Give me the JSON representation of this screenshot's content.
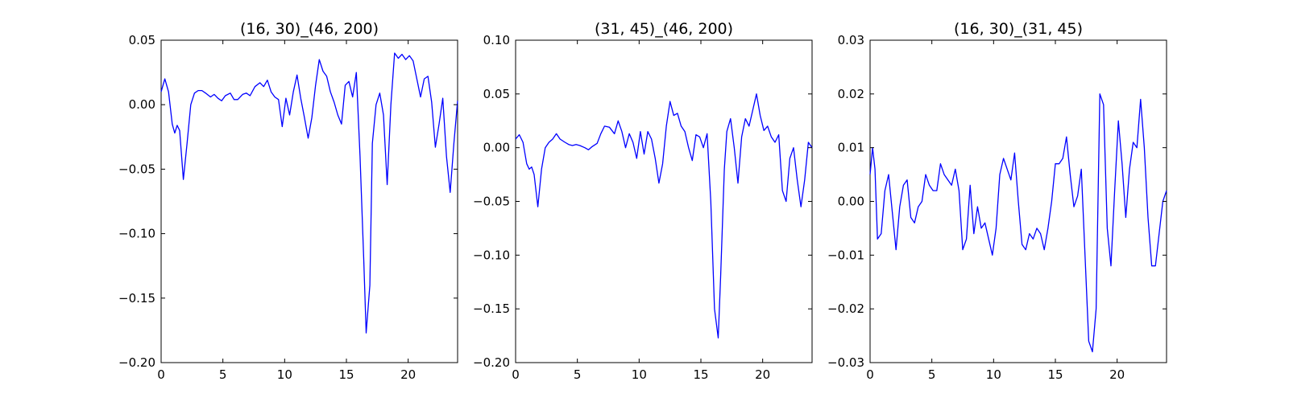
{
  "chart_data": [
    {
      "type": "line",
      "title": "(16, 30)_(46, 200)",
      "xlim": [
        0,
        24
      ],
      "ylim": [
        -0.2,
        0.05
      ],
      "xticks": [
        "0",
        "5",
        "10",
        "15",
        "20"
      ],
      "xtick_values": [
        0,
        5,
        10,
        15,
        20
      ],
      "yticks": [
        "−0.20",
        "−0.15",
        "−0.10",
        "−0.05",
        "0.00",
        "0.05"
      ],
      "ytick_values": [
        -0.2,
        -0.15,
        -0.1,
        -0.05,
        0.0,
        0.05
      ],
      "grid": false,
      "color": "#0000ff",
      "x": [
        0,
        0.3,
        0.6,
        0.9,
        1.1,
        1.3,
        1.5,
        1.8,
        2.1,
        2.4,
        2.7,
        3.0,
        3.3,
        3.6,
        4.0,
        4.3,
        4.6,
        4.9,
        5.2,
        5.6,
        5.9,
        6.2,
        6.6,
        6.9,
        7.2,
        7.6,
        8.0,
        8.3,
        8.6,
        8.9,
        9.2,
        9.5,
        9.8,
        10.1,
        10.4,
        10.7,
        11.0,
        11.3,
        11.6,
        11.9,
        12.2,
        12.5,
        12.8,
        13.1,
        13.4,
        13.7,
        14.0,
        14.3,
        14.6,
        14.9,
        15.2,
        15.5,
        15.8,
        16.1,
        16.4,
        16.6,
        16.9,
        17.1,
        17.4,
        17.7,
        18.0,
        18.3,
        18.6,
        18.9,
        19.2,
        19.5,
        19.8,
        20.1,
        20.4,
        20.7,
        21.0,
        21.3,
        21.6,
        21.9,
        22.2,
        22.5,
        22.8,
        23.1,
        23.4,
        23.7,
        24.0
      ],
      "y": [
        0.01,
        0.02,
        0.01,
        -0.015,
        -0.022,
        -0.016,
        -0.02,
        -0.058,
        -0.03,
        0.0,
        0.009,
        0.011,
        0.011,
        0.009,
        0.006,
        0.008,
        0.005,
        0.003,
        0.007,
        0.009,
        0.004,
        0.004,
        0.008,
        0.009,
        0.007,
        0.014,
        0.017,
        0.014,
        0.019,
        0.01,
        0.006,
        0.004,
        -0.017,
        0.005,
        -0.008,
        0.01,
        0.023,
        0.005,
        -0.01,
        -0.026,
        -0.01,
        0.015,
        0.035,
        0.026,
        0.022,
        0.01,
        0.002,
        -0.008,
        -0.015,
        0.015,
        0.018,
        0.006,
        0.025,
        -0.04,
        -0.12,
        -0.177,
        -0.14,
        -0.03,
        0.0,
        0.009,
        -0.008,
        -0.062,
        0.0,
        0.04,
        0.036,
        0.039,
        0.035,
        0.038,
        0.034,
        0.02,
        0.006,
        0.02,
        0.022,
        0.002,
        -0.033,
        -0.015,
        0.005,
        -0.04,
        -0.068,
        -0.03,
        0.003
      ]
    },
    {
      "type": "line",
      "title": "(31, 45)_(46, 200)",
      "xlim": [
        0,
        24
      ],
      "ylim": [
        -0.2,
        0.1
      ],
      "xticks": [
        "0",
        "5",
        "10",
        "15",
        "20"
      ],
      "xtick_values": [
        0,
        5,
        10,
        15,
        20
      ],
      "yticks": [
        "−0.20",
        "−0.15",
        "−0.10",
        "−0.05",
        "0.00",
        "0.05",
        "0.10"
      ],
      "ytick_values": [
        -0.2,
        -0.15,
        -0.1,
        -0.05,
        0.0,
        0.05,
        0.1
      ],
      "grid": false,
      "color": "#0000ff",
      "x": [
        0,
        0.3,
        0.6,
        0.9,
        1.1,
        1.3,
        1.5,
        1.8,
        2.1,
        2.4,
        2.7,
        3.0,
        3.3,
        3.6,
        4.0,
        4.3,
        4.6,
        4.9,
        5.2,
        5.6,
        5.9,
        6.2,
        6.6,
        6.9,
        7.2,
        7.6,
        8.0,
        8.3,
        8.6,
        8.9,
        9.2,
        9.5,
        9.8,
        10.1,
        10.4,
        10.7,
        11.0,
        11.3,
        11.6,
        11.9,
        12.2,
        12.5,
        12.8,
        13.1,
        13.4,
        13.7,
        14.0,
        14.3,
        14.6,
        14.9,
        15.2,
        15.5,
        15.8,
        16.1,
        16.4,
        16.6,
        16.9,
        17.1,
        17.4,
        17.7,
        18.0,
        18.3,
        18.6,
        18.9,
        19.2,
        19.5,
        19.8,
        20.1,
        20.4,
        20.7,
        21.0,
        21.3,
        21.6,
        21.9,
        22.2,
        22.5,
        22.8,
        23.1,
        23.4,
        23.7,
        24.0
      ],
      "y": [
        0.008,
        0.012,
        0.005,
        -0.015,
        -0.02,
        -0.018,
        -0.025,
        -0.055,
        -0.02,
        0.0,
        0.005,
        0.008,
        0.013,
        0.008,
        0.005,
        0.003,
        0.002,
        0.003,
        0.002,
        0.0,
        -0.002,
        0.001,
        0.004,
        0.013,
        0.02,
        0.019,
        0.013,
        0.025,
        0.015,
        0.0,
        0.013,
        0.005,
        -0.01,
        0.015,
        -0.006,
        0.015,
        0.008,
        -0.01,
        -0.033,
        -0.015,
        0.02,
        0.043,
        0.03,
        0.032,
        0.02,
        0.015,
        0.0,
        -0.012,
        0.012,
        0.01,
        0.0,
        0.013,
        -0.05,
        -0.15,
        -0.177,
        -0.12,
        -0.02,
        0.015,
        0.027,
        0.0,
        -0.033,
        0.01,
        0.027,
        0.02,
        0.035,
        0.05,
        0.03,
        0.016,
        0.02,
        0.01,
        0.005,
        0.012,
        -0.04,
        -0.05,
        -0.01,
        0.0,
        -0.03,
        -0.055,
        -0.03,
        0.005,
        0.0
      ]
    },
    {
      "type": "line",
      "title": "(16, 30)_(31, 45)",
      "xlim": [
        0,
        24
      ],
      "ylim": [
        -0.03,
        0.03
      ],
      "xticks": [
        "0",
        "5",
        "10",
        "15",
        "20"
      ],
      "xtick_values": [
        0,
        5,
        10,
        15,
        20
      ],
      "yticks": [
        "−0.03",
        "−0.02",
        "−0.01",
        "0.00",
        "0.01",
        "0.02",
        "0.03"
      ],
      "ytick_values": [
        -0.03,
        -0.02,
        -0.01,
        0.0,
        0.01,
        0.02,
        0.03
      ],
      "grid": false,
      "color": "#0000ff",
      "x": [
        0,
        0.2,
        0.4,
        0.6,
        0.9,
        1.2,
        1.5,
        1.8,
        2.1,
        2.4,
        2.7,
        3.0,
        3.3,
        3.6,
        3.9,
        4.2,
        4.5,
        4.8,
        5.1,
        5.4,
        5.7,
        6.0,
        6.3,
        6.6,
        6.9,
        7.2,
        7.5,
        7.8,
        8.1,
        8.4,
        8.7,
        9.0,
        9.3,
        9.6,
        9.9,
        10.2,
        10.5,
        10.8,
        11.1,
        11.4,
        11.7,
        12.0,
        12.3,
        12.6,
        12.9,
        13.2,
        13.5,
        13.8,
        14.1,
        14.4,
        14.7,
        15.0,
        15.3,
        15.6,
        15.9,
        16.2,
        16.5,
        16.8,
        17.1,
        17.4,
        17.7,
        18.0,
        18.3,
        18.6,
        18.9,
        19.2,
        19.5,
        19.8,
        20.1,
        20.4,
        20.7,
        21.0,
        21.3,
        21.6,
        21.9,
        22.2,
        22.5,
        22.8,
        23.1,
        23.4,
        23.7,
        24.0
      ],
      "y": [
        0.005,
        0.01,
        0.006,
        -0.007,
        -0.006,
        0.002,
        0.005,
        -0.002,
        -0.009,
        -0.001,
        0.003,
        0.004,
        -0.003,
        -0.004,
        -0.001,
        0.0,
        0.005,
        0.003,
        0.002,
        0.002,
        0.007,
        0.005,
        0.004,
        0.003,
        0.006,
        0.002,
        -0.009,
        -0.007,
        0.003,
        -0.006,
        -0.001,
        -0.005,
        -0.004,
        -0.007,
        -0.01,
        -0.005,
        0.005,
        0.008,
        0.006,
        0.004,
        0.009,
        0.0,
        -0.008,
        -0.009,
        -0.006,
        -0.007,
        -0.005,
        -0.006,
        -0.009,
        -0.005,
        0.0,
        0.007,
        0.007,
        0.008,
        0.012,
        0.005,
        -0.001,
        0.001,
        0.006,
        -0.01,
        -0.026,
        -0.028,
        -0.02,
        0.02,
        0.018,
        -0.005,
        -0.012,
        0.002,
        0.015,
        0.007,
        -0.003,
        0.006,
        0.011,
        0.01,
        0.019,
        0.01,
        -0.003,
        -0.012,
        -0.012,
        -0.006,
        0.0,
        0.002
      ]
    }
  ]
}
